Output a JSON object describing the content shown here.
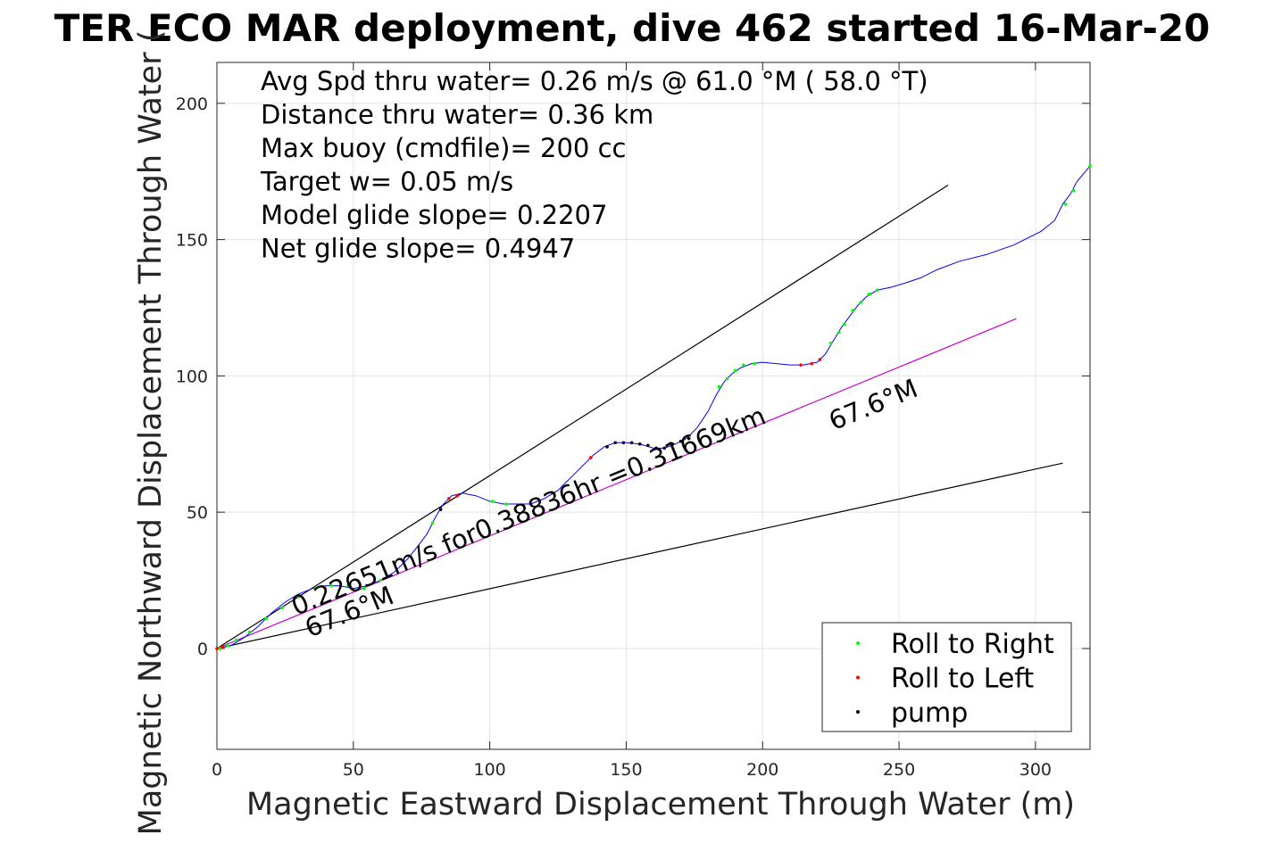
{
  "chart_data": {
    "type": "line",
    "title": "TER ECO MAR deployment, dive 462 started 16-Mar-20",
    "xlabel": "Magnetic Eastward Displacement Through Water (m)",
    "ylabel": "Magnetic Northward Displacement Through Water (",
    "xlim": [
      0,
      320
    ],
    "ylim": [
      -37,
      215
    ],
    "xticks": [
      0,
      50,
      100,
      150,
      200,
      250,
      300
    ],
    "yticks": [
      0,
      50,
      100,
      150,
      200
    ],
    "grid": true,
    "stats": [
      "Avg Spd thru water=  0.26 m/s @  61.0 °M ( 58.0 °T)",
      "Distance thru water=  0.36 km",
      "Max buoy (cmdfile)= 200 cc",
      "Target w= 0.05 m/s",
      "Model glide slope= 0.2207",
      "Net glide slope= 0.4947"
    ],
    "annotations": [
      {
        "text": "0.22651m/s for0.38836hr =0.31669km",
        "x": 29,
        "y": 12,
        "angle": -22.3
      },
      {
        "text": "67.6°M",
        "x": 226,
        "y": 80,
        "angle": -22.3
      },
      {
        "text": "67.6°M",
        "x": 34,
        "y": 4,
        "angle": -22.3
      }
    ],
    "reference_lines": [
      {
        "name": "upper",
        "color": "#000000",
        "points": [
          [
            0,
            0
          ],
          [
            268,
            170
          ]
        ]
      },
      {
        "name": "heading",
        "color": "#cc00cc",
        "points": [
          [
            0,
            0
          ],
          [
            293,
            121
          ]
        ]
      },
      {
        "name": "lower",
        "color": "#000000",
        "points": [
          [
            0,
            0
          ],
          [
            310,
            68
          ]
        ]
      }
    ],
    "track": {
      "color": "#0000ff",
      "points": [
        [
          0,
          0
        ],
        [
          5,
          1
        ],
        [
          10,
          4
        ],
        [
          15,
          8
        ],
        [
          20,
          13
        ],
        [
          25,
          17
        ],
        [
          30,
          20
        ],
        [
          35,
          22
        ],
        [
          40,
          23
        ],
        [
          45,
          23
        ],
        [
          50,
          22
        ],
        [
          55,
          23
        ],
        [
          60,
          25
        ],
        [
          65,
          28
        ],
        [
          70,
          33
        ],
        [
          74,
          38
        ],
        [
          77,
          42
        ],
        [
          80,
          48
        ],
        [
          83,
          53
        ],
        [
          86,
          56
        ],
        [
          90,
          57
        ],
        [
          95,
          56
        ],
        [
          100,
          54
        ],
        [
          105,
          53
        ],
        [
          110,
          53
        ],
        [
          115,
          53
        ],
        [
          120,
          55
        ],
        [
          125,
          58
        ],
        [
          130,
          63
        ],
        [
          135,
          68
        ],
        [
          138,
          71
        ],
        [
          142,
          74
        ],
        [
          146,
          75.5
        ],
        [
          150,
          75.5
        ],
        [
          155,
          75
        ],
        [
          160,
          73.5
        ],
        [
          164,
          73.5
        ],
        [
          168,
          75
        ],
        [
          172,
          77
        ],
        [
          176,
          81
        ],
        [
          180,
          87
        ],
        [
          183,
          93
        ],
        [
          186,
          98
        ],
        [
          189,
          101
        ],
        [
          192,
          103
        ],
        [
          196,
          104.5
        ],
        [
          200,
          105
        ],
        [
          205,
          104.5
        ],
        [
          210,
          104
        ],
        [
          215,
          104
        ],
        [
          220,
          105
        ],
        [
          223,
          108
        ],
        [
          226,
          113
        ],
        [
          229,
          118
        ],
        [
          232,
          122
        ],
        [
          235,
          126
        ],
        [
          238,
          129
        ],
        [
          242,
          131.5
        ],
        [
          247,
          132.5
        ],
        [
          252,
          134
        ],
        [
          258,
          136
        ],
        [
          264,
          139
        ],
        [
          272,
          142
        ],
        [
          282,
          144.5
        ],
        [
          292,
          148
        ],
        [
          302,
          153
        ],
        [
          307,
          157
        ],
        [
          310,
          163
        ],
        [
          313,
          167
        ],
        [
          315,
          171
        ],
        [
          320,
          177
        ]
      ]
    },
    "series": [
      {
        "name": "Roll to Right",
        "color": "#00ff00",
        "marker": "point",
        "points": [
          [
            1,
            0
          ],
          [
            4,
            1
          ],
          [
            7,
            3
          ],
          [
            12,
            6
          ],
          [
            18,
            11
          ],
          [
            24,
            15
          ],
          [
            30,
            19
          ],
          [
            36,
            22
          ],
          [
            42,
            23
          ],
          [
            48,
            23
          ],
          [
            54,
            22
          ],
          [
            60,
            25
          ],
          [
            79,
            46
          ],
          [
            101,
            54
          ],
          [
            106,
            53
          ],
          [
            184,
            96
          ],
          [
            187,
            99
          ],
          [
            190,
            102
          ],
          [
            193,
            104
          ],
          [
            197,
            104.5
          ],
          [
            225,
            112
          ],
          [
            228,
            116
          ],
          [
            230,
            119
          ],
          [
            233,
            124
          ],
          [
            236,
            127
          ],
          [
            239,
            130
          ],
          [
            242,
            131.5
          ],
          [
            311,
            163
          ],
          [
            314,
            168
          ],
          [
            320,
            177
          ]
        ]
      },
      {
        "name": "Roll to Left",
        "color": "#ff0000",
        "marker": "point",
        "points": [
          [
            0,
            0
          ],
          [
            2,
            0.5
          ],
          [
            85,
            55
          ],
          [
            88,
            56
          ],
          [
            137,
            70
          ],
          [
            214,
            104
          ],
          [
            218,
            104.5
          ],
          [
            221,
            106
          ]
        ]
      },
      {
        "name": "pump",
        "color": "#000000",
        "marker": "point",
        "points": [
          [
            82,
            51
          ],
          [
            143,
            74
          ],
          [
            146,
            75.5
          ],
          [
            149,
            75.5
          ],
          [
            152,
            75.5
          ],
          [
            155,
            75
          ],
          [
            158,
            74.5
          ],
          [
            161,
            73.5
          ],
          [
            164,
            73.5
          ],
          [
            167,
            75
          ],
          [
            170,
            76
          ],
          [
            173,
            77
          ]
        ]
      }
    ],
    "legend": {
      "placement": "bottom-right",
      "entries": [
        "Roll to Right",
        "Roll to Left",
        "pump"
      ]
    }
  }
}
